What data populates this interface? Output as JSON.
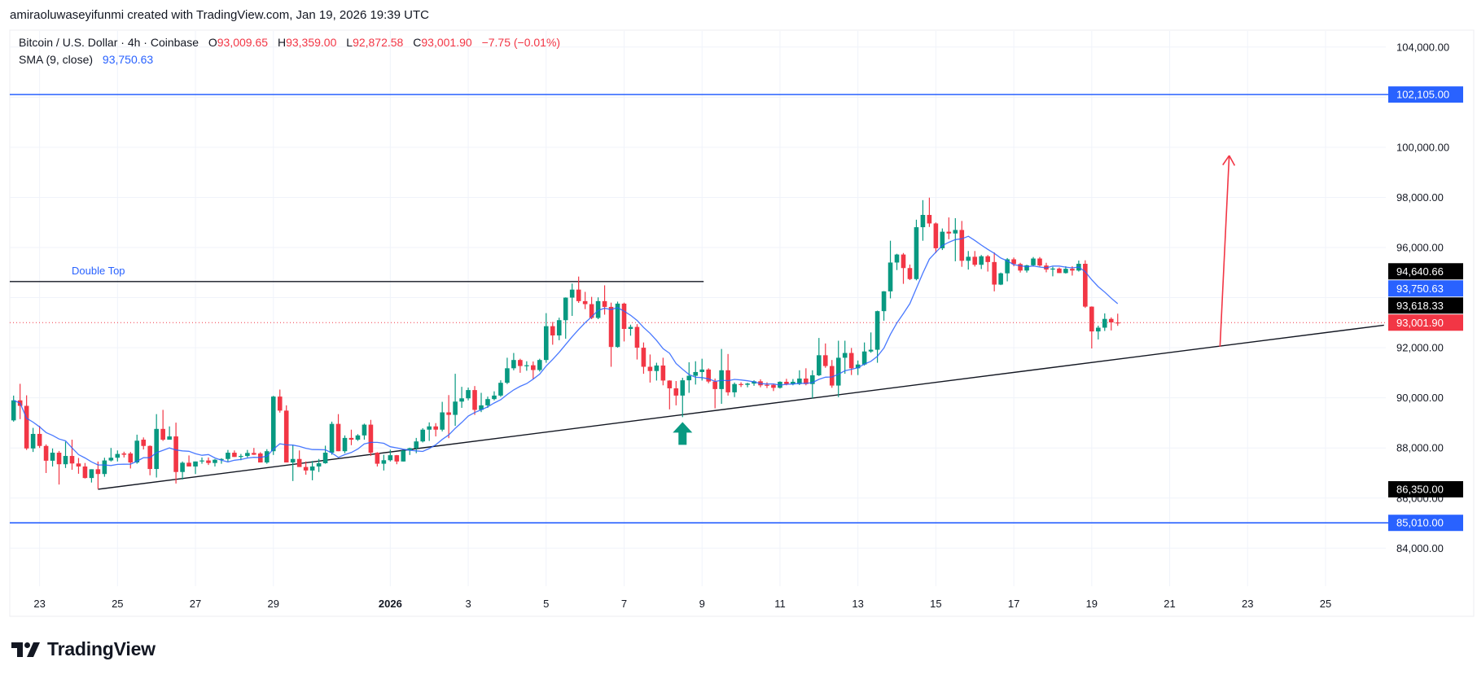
{
  "header": {
    "attribution": "amiraoluwaseyifunmi created with TradingView.com, Jan 19, 2026 19:39 UTC"
  },
  "legend": {
    "symbol": "Bitcoin / U.S. Dollar · 4h · Coinbase",
    "open_label": "O",
    "open": "93,009.65",
    "high_label": "H",
    "high": "93,359.00",
    "low_label": "L",
    "low": "92,872.58",
    "close_label": "C",
    "close": "93,001.90",
    "change": "−7.75 (−0.01%)",
    "sma_label": "SMA (9, close)",
    "sma_value": "93,750.63"
  },
  "brand": {
    "logo_text": "TradingView"
  },
  "colors": {
    "up": "#089981",
    "down": "#f23645",
    "sma": "#2962ff",
    "level_line": "#2962ff",
    "trendline": "#131722",
    "grid": "#f0f3fa",
    "target_arrow": "#f23645",
    "signal_arrow": "#089981"
  },
  "chart_data": {
    "type": "candlestick",
    "title": "",
    "interval": "4h",
    "start": "2025-12-22T08:00:00Z",
    "ylim": [
      82000,
      105500
    ],
    "grid": true,
    "y_ticks": [
      "104,000.00",
      "100,000.00",
      "98,000.00",
      "96,000.00",
      "92,000.00",
      "90,000.00",
      "88,000.00",
      "86,000.00",
      "84,000.00"
    ],
    "y_tick_values": [
      104000,
      100000,
      98000,
      96000,
      92000,
      90000,
      88000,
      86000,
      84000
    ],
    "x_ticks": [
      {
        "label": "23",
        "date": "2025-12-23"
      },
      {
        "label": "25",
        "date": "2025-12-25"
      },
      {
        "label": "27",
        "date": "2025-12-27"
      },
      {
        "label": "29",
        "date": "2025-12-29"
      },
      {
        "label": "2026",
        "date": "2026-01-01",
        "bold": true
      },
      {
        "label": "3",
        "date": "2026-01-03"
      },
      {
        "label": "5",
        "date": "2026-01-05"
      },
      {
        "label": "7",
        "date": "2026-01-07"
      },
      {
        "label": "9",
        "date": "2026-01-09"
      },
      {
        "label": "11",
        "date": "2026-01-11"
      },
      {
        "label": "13",
        "date": "2026-01-13"
      },
      {
        "label": "15",
        "date": "2026-01-15"
      },
      {
        "label": "17",
        "date": "2026-01-17"
      },
      {
        "label": "19",
        "date": "2026-01-19"
      },
      {
        "label": "21",
        "date": "2026-01-21"
      },
      {
        "label": "23",
        "date": "2026-01-23"
      },
      {
        "label": "25",
        "date": "2026-01-25"
      }
    ],
    "candles": [
      [
        89100,
        90090,
        89050,
        89900
      ],
      [
        89900,
        90560,
        89150,
        89680
      ],
      [
        89680,
        90100,
        87920,
        87980
      ],
      [
        87980,
        88800,
        87840,
        88560
      ],
      [
        88560,
        88880,
        88000,
        88080
      ],
      [
        88080,
        88140,
        87000,
        87490
      ],
      [
        87490,
        87980,
        87260,
        87810
      ],
      [
        87810,
        87880,
        86540,
        87350
      ],
      [
        87350,
        88250,
        87200,
        87680
      ],
      [
        87680,
        88330,
        87130,
        87380
      ],
      [
        87380,
        87600,
        86970,
        87260
      ],
      [
        87260,
        87400,
        86780,
        86800
      ],
      [
        86800,
        87150,
        86620,
        87150
      ],
      [
        87150,
        87460,
        86360,
        86960
      ],
      [
        86960,
        87610,
        86850,
        87500
      ],
      [
        87500,
        88000,
        87460,
        87610
      ],
      [
        87610,
        87900,
        87460,
        87760
      ],
      [
        87780,
        87850,
        87620,
        87730
      ],
      [
        87780,
        87840,
        87180,
        87420
      ],
      [
        87420,
        88530,
        87370,
        88290
      ],
      [
        88330,
        88420,
        87940,
        88080
      ],
      [
        88080,
        88100,
        86910,
        87160
      ],
      [
        87160,
        89350,
        86820,
        88760
      ],
      [
        88760,
        89520,
        88280,
        88330
      ],
      [
        88330,
        88860,
        88330,
        88460
      ],
      [
        88460,
        89010,
        86580,
        87040
      ],
      [
        87040,
        87460,
        86740,
        87410
      ],
      [
        87410,
        87700,
        87260,
        87260
      ],
      [
        87260,
        87460,
        86960,
        87460
      ],
      [
        87460,
        87620,
        87370,
        87500
      ],
      [
        87500,
        87620,
        87320,
        87400
      ],
      [
        87400,
        87560,
        87260,
        87530
      ],
      [
        87530,
        87590,
        87370,
        87560
      ],
      [
        87560,
        87920,
        87460,
        87810
      ],
      [
        87810,
        87900,
        87640,
        87640
      ],
      [
        87640,
        87760,
        87510,
        87680
      ],
      [
        87680,
        87920,
        87620,
        87800
      ],
      [
        87800,
        88000,
        87720,
        87730
      ],
      [
        87780,
        87830,
        87420,
        87420
      ],
      [
        87420,
        87950,
        87370,
        87870
      ],
      [
        87870,
        90080,
        87720,
        90050
      ],
      [
        90050,
        90330,
        89410,
        89490
      ],
      [
        89490,
        89700,
        87420,
        87420
      ],
      [
        87420,
        88120,
        86680,
        87560
      ],
      [
        87560,
        87900,
        87240,
        87240
      ],
      [
        87240,
        87460,
        86930,
        87100
      ],
      [
        87100,
        87480,
        86710,
        87260
      ],
      [
        87260,
        87560,
        87040,
        87390
      ],
      [
        87390,
        88090,
        87370,
        87810
      ],
      [
        87810,
        89050,
        87730,
        88960
      ],
      [
        88960,
        89350,
        87870,
        87870
      ],
      [
        87870,
        88500,
        87790,
        88400
      ],
      [
        88400,
        88730,
        88110,
        88330
      ],
      [
        88330,
        88550,
        88280,
        88500
      ],
      [
        88500,
        88970,
        88330,
        88930
      ],
      [
        88930,
        89120,
        87680,
        87810
      ],
      [
        87810,
        87830,
        87260,
        87370
      ],
      [
        87370,
        87730,
        87100,
        87510
      ],
      [
        87510,
        87930,
        87460,
        87710
      ],
      [
        87710,
        87720,
        87350,
        87460
      ],
      [
        87460,
        87900,
        87460,
        87900
      ],
      [
        87900,
        88010,
        87720,
        87990
      ],
      [
        87990,
        88400,
        87790,
        88260
      ],
      [
        88260,
        88790,
        88220,
        88730
      ],
      [
        88730,
        89020,
        88280,
        88860
      ],
      [
        88860,
        88990,
        88460,
        88730
      ],
      [
        88730,
        89840,
        88660,
        89420
      ],
      [
        89420,
        90110,
        88390,
        89320
      ],
      [
        89320,
        90960,
        88880,
        89850
      ],
      [
        89850,
        90440,
        89600,
        89980
      ],
      [
        89980,
        90410,
        89900,
        90310
      ],
      [
        90310,
        90470,
        89320,
        89520
      ],
      [
        89520,
        90200,
        89430,
        89700
      ],
      [
        89700,
        90050,
        89600,
        89950
      ],
      [
        89950,
        90260,
        89900,
        90090
      ],
      [
        90090,
        90700,
        90040,
        90600
      ],
      [
        90600,
        91600,
        90550,
        91180
      ],
      [
        91180,
        91790,
        91100,
        91510
      ],
      [
        91510,
        91560,
        91000,
        91270
      ],
      [
        91270,
        91460,
        91080,
        91300
      ],
      [
        91300,
        91450,
        90750,
        91110
      ],
      [
        91110,
        91560,
        91050,
        91510
      ],
      [
        91510,
        93380,
        91400,
        92860
      ],
      [
        92860,
        93030,
        92120,
        92490
      ],
      [
        92490,
        93200,
        92300,
        93100
      ],
      [
        93100,
        94010,
        92360,
        94000
      ],
      [
        94000,
        94560,
        93270,
        94320
      ],
      [
        94320,
        94840,
        93790,
        93860
      ],
      [
        93860,
        94230,
        93540,
        93740
      ],
      [
        93740,
        94030,
        93140,
        93190
      ],
      [
        93190,
        94010,
        93140,
        93860
      ],
      [
        93860,
        94490,
        93320,
        93630
      ],
      [
        93630,
        93800,
        91240,
        92030
      ],
      [
        92030,
        93840,
        92000,
        93760
      ],
      [
        93760,
        93800,
        92250,
        92750
      ],
      [
        92750,
        92920,
        92480,
        92830
      ],
      [
        92830,
        92940,
        91530,
        92000
      ],
      [
        92000,
        92210,
        90960,
        91240
      ],
      [
        91240,
        91730,
        90610,
        91070
      ],
      [
        91070,
        91400,
        90690,
        91290
      ],
      [
        91290,
        91600,
        90500,
        90690
      ],
      [
        90690,
        90700,
        89540,
        90380
      ],
      [
        90380,
        90670,
        89700,
        90090
      ],
      [
        90090,
        90800,
        89230,
        90700
      ],
      [
        90700,
        91420,
        90200,
        90880
      ],
      [
        90880,
        91460,
        90530,
        91030
      ],
      [
        91030,
        91560,
        90690,
        91130
      ],
      [
        91130,
        91180,
        90580,
        90650
      ],
      [
        90650,
        90770,
        89580,
        90350
      ],
      [
        90350,
        91950,
        89760,
        91100
      ],
      [
        91100,
        91750,
        90090,
        90220
      ],
      [
        90220,
        90610,
        90030,
        90550
      ],
      [
        90550,
        90620,
        90430,
        90520
      ],
      [
        90520,
        90600,
        90420,
        90570
      ],
      [
        90570,
        90700,
        90480,
        90660
      ],
      [
        90660,
        90740,
        90420,
        90500
      ],
      [
        90520,
        90620,
        90390,
        90490
      ],
      [
        90520,
        90560,
        90270,
        90400
      ],
      [
        90400,
        90660,
        90370,
        90640
      ],
      [
        90640,
        90760,
        90500,
        90550
      ],
      [
        90550,
        90750,
        90500,
        90640
      ],
      [
        90550,
        91100,
        90510,
        90770
      ],
      [
        90770,
        91180,
        90500,
        90550
      ],
      [
        90550,
        91100,
        89980,
        90900
      ],
      [
        90900,
        92390,
        90870,
        91700
      ],
      [
        91700,
        92170,
        91200,
        91270
      ],
      [
        91270,
        91510,
        90400,
        90490
      ],
      [
        90490,
        92280,
        90030,
        91600
      ],
      [
        91600,
        92280,
        90960,
        91790
      ],
      [
        91790,
        91990,
        90910,
        91180
      ],
      [
        91180,
        91490,
        90910,
        91330
      ],
      [
        91330,
        92210,
        91290,
        91850
      ],
      [
        91850,
        92610,
        91800,
        91920
      ],
      [
        91920,
        93480,
        91400,
        93460
      ],
      [
        93460,
        94260,
        93080,
        94250
      ],
      [
        94250,
        96270,
        93970,
        95400
      ],
      [
        95400,
        95750,
        95100,
        95720
      ],
      [
        95720,
        95780,
        94550,
        95180
      ],
      [
        95180,
        95320,
        94700,
        94740
      ],
      [
        94740,
        97110,
        94690,
        96810
      ],
      [
        96810,
        97890,
        96270,
        97300
      ],
      [
        97300,
        97990,
        96820,
        96960
      ],
      [
        96960,
        97000,
        95780,
        95970
      ],
      [
        95970,
        96760,
        95900,
        96630
      ],
      [
        96630,
        97200,
        96330,
        96560
      ],
      [
        96560,
        97170,
        95450,
        96700
      ],
      [
        96700,
        97060,
        95230,
        95470
      ],
      [
        95470,
        95860,
        95120,
        95630
      ],
      [
        95630,
        95860,
        95240,
        95310
      ],
      [
        95310,
        95700,
        95140,
        95650
      ],
      [
        95650,
        95700,
        95040,
        95420
      ],
      [
        95420,
        95800,
        94250,
        94520
      ],
      [
        94520,
        95000,
        94500,
        94970
      ],
      [
        94970,
        95580,
        94650,
        95530
      ],
      [
        95530,
        95600,
        95250,
        95340
      ],
      [
        95340,
        95390,
        95000,
        95080
      ],
      [
        95080,
        95310,
        95000,
        95290
      ],
      [
        95290,
        95620,
        95250,
        95560
      ],
      [
        95560,
        95620,
        95240,
        95280
      ],
      [
        95280,
        95390,
        95010,
        95120
      ],
      [
        95120,
        95230,
        94850,
        95160
      ],
      [
        95160,
        95200,
        94980,
        94980
      ],
      [
        94980,
        95250,
        94960,
        95150
      ],
      [
        95150,
        95250,
        94880,
        95080
      ],
      [
        95080,
        95480,
        95040,
        95350
      ],
      [
        95350,
        95490,
        93590,
        93640
      ],
      [
        93640,
        93650,
        91970,
        92650
      ],
      [
        92650,
        92880,
        92330,
        92800
      ],
      [
        92800,
        93370,
        92670,
        93150
      ],
      [
        93150,
        93210,
        92690,
        93010
      ],
      [
        93009.65,
        93359.0,
        92872.58,
        93001.9
      ]
    ],
    "indicator": {
      "name": "SMA (9, close)",
      "period": 9
    },
    "current_price": 93001.9,
    "horizontal_levels": [
      102105.0,
      85010.0
    ],
    "double_top": {
      "label": "Double Top",
      "price": 94640.66,
      "end": "2026-01-09T01:00:00Z"
    },
    "trendline": {
      "start": [
        "2025-12-24T12:00:00Z",
        86350.0
      ],
      "end": [
        "2026-01-26T12:00:00Z",
        92900
      ]
    },
    "target_arrow": {
      "from": [
        "2026-01-22T07:00:00Z",
        92040
      ],
      "to": [
        "2026-01-22T12:40:00Z",
        99670
      ]
    },
    "signal_arrow": {
      "time": "2026-01-08T12:00:00Z",
      "price": 89230,
      "direction": "up"
    },
    "price_badges": [
      {
        "text": "102,105.00",
        "value": 102105.0,
        "color": "#2962ff"
      },
      {
        "text": "94,640.66",
        "value": 94640.66,
        "color": "#000000"
      },
      {
        "text": "93,750.63",
        "value": 93750.63,
        "color": "#2962ff"
      },
      {
        "text": "93,618.33",
        "value": 93618.33,
        "color": "#000000"
      },
      {
        "text": "93,001.90",
        "value": 93001.9,
        "color": "#f23645"
      },
      {
        "text": "86,350.00",
        "value": 86350.0,
        "color": "#000000"
      },
      {
        "text": "85,010.00",
        "value": 85010.0,
        "color": "#2962ff"
      }
    ]
  }
}
